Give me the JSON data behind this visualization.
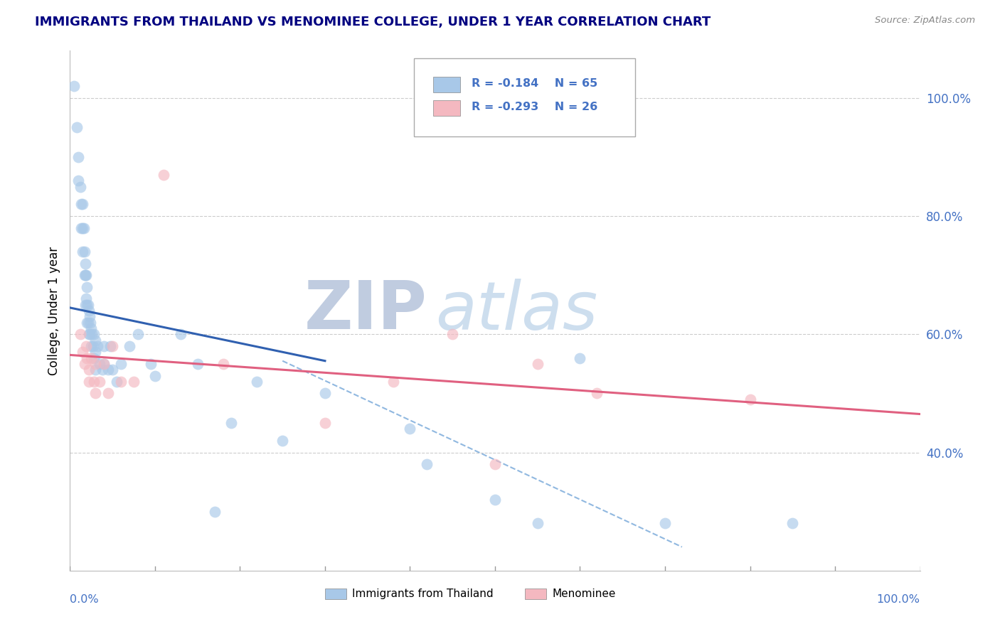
{
  "title": "IMMIGRANTS FROM THAILAND VS MENOMINEE COLLEGE, UNDER 1 YEAR CORRELATION CHART",
  "source": "Source: ZipAtlas.com",
  "ylabel": "College, Under 1 year",
  "right_ytick_labels": [
    "100.0%",
    "80.0%",
    "60.0%",
    "40.0%"
  ],
  "right_ytick_values": [
    1.0,
    0.8,
    0.6,
    0.4
  ],
  "xmin": 0.0,
  "xmax": 1.0,
  "ymin": 0.2,
  "ymax": 1.08,
  "legend_r1": "R = -0.184",
  "legend_n1": "N = 65",
  "legend_r2": "R = -0.293",
  "legend_n2": "N = 26",
  "color_blue": "#a8c8e8",
  "color_pink": "#f4b8c0",
  "color_blue_line": "#3060b0",
  "color_pink_line": "#e06080",
  "color_dashed": "#90b8e0",
  "watermark_zip": "ZIP",
  "watermark_atlas": "atlas",
  "background_color": "#ffffff",
  "title_color": "#000080",
  "axis_color": "#4472c4",
  "grid_color": "#cccccc",
  "blue_scatter_x": [
    0.005,
    0.008,
    0.01,
    0.01,
    0.012,
    0.013,
    0.013,
    0.015,
    0.015,
    0.015,
    0.016,
    0.017,
    0.017,
    0.018,
    0.018,
    0.018,
    0.019,
    0.019,
    0.02,
    0.02,
    0.02,
    0.021,
    0.021,
    0.022,
    0.022,
    0.023,
    0.023,
    0.024,
    0.025,
    0.025,
    0.026,
    0.027,
    0.028,
    0.028,
    0.03,
    0.03,
    0.03,
    0.032,
    0.035,
    0.038,
    0.04,
    0.04,
    0.045,
    0.047,
    0.05,
    0.055,
    0.06,
    0.07,
    0.08,
    0.095,
    0.1,
    0.13,
    0.15,
    0.17,
    0.19,
    0.22,
    0.25,
    0.3,
    0.4,
    0.42,
    0.5,
    0.55,
    0.6,
    0.7,
    0.85
  ],
  "blue_scatter_y": [
    1.02,
    0.95,
    0.9,
    0.86,
    0.85,
    0.82,
    0.78,
    0.82,
    0.78,
    0.74,
    0.78,
    0.74,
    0.7,
    0.72,
    0.7,
    0.65,
    0.7,
    0.66,
    0.68,
    0.65,
    0.62,
    0.65,
    0.62,
    0.64,
    0.6,
    0.63,
    0.6,
    0.62,
    0.61,
    0.58,
    0.6,
    0.58,
    0.6,
    0.56,
    0.59,
    0.57,
    0.54,
    0.58,
    0.55,
    0.54,
    0.58,
    0.55,
    0.54,
    0.58,
    0.54,
    0.52,
    0.55,
    0.58,
    0.6,
    0.55,
    0.53,
    0.6,
    0.55,
    0.3,
    0.45,
    0.52,
    0.42,
    0.5,
    0.44,
    0.38,
    0.32,
    0.28,
    0.56,
    0.28,
    0.28
  ],
  "pink_scatter_x": [
    0.012,
    0.015,
    0.017,
    0.019,
    0.02,
    0.022,
    0.022,
    0.025,
    0.028,
    0.03,
    0.03,
    0.035,
    0.04,
    0.045,
    0.05,
    0.06,
    0.075,
    0.11,
    0.18,
    0.3,
    0.38,
    0.45,
    0.5,
    0.55,
    0.62,
    0.8
  ],
  "pink_scatter_y": [
    0.6,
    0.57,
    0.55,
    0.58,
    0.56,
    0.54,
    0.52,
    0.56,
    0.52,
    0.55,
    0.5,
    0.52,
    0.55,
    0.5,
    0.58,
    0.52,
    0.52,
    0.87,
    0.55,
    0.45,
    0.52,
    0.6,
    0.38,
    0.55,
    0.5,
    0.49
  ],
  "blue_line_x": [
    0.0,
    0.3
  ],
  "blue_line_y": [
    0.645,
    0.555
  ],
  "pink_line_x": [
    0.0,
    1.0
  ],
  "pink_line_y": [
    0.565,
    0.465
  ],
  "dashed_line_x": [
    0.25,
    0.72
  ],
  "dashed_line_y": [
    0.555,
    0.24
  ],
  "bottom_legend_blue": "Immigrants from Thailand",
  "bottom_legend_pink": "Menominee"
}
